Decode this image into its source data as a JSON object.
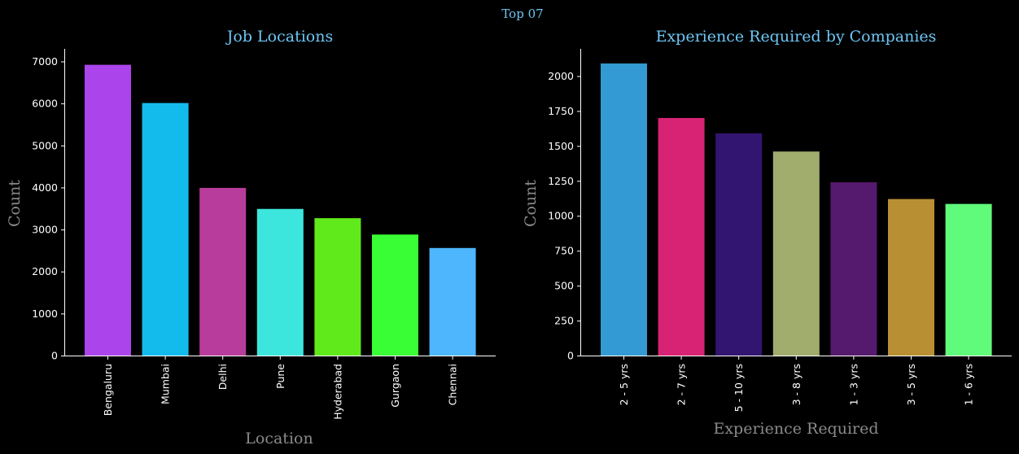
{
  "suptitle": "Top 07",
  "chart_data": [
    {
      "type": "bar",
      "title": "Job Locations",
      "xlabel": "Location",
      "ylabel": "Count",
      "categories": [
        "Bengaluru",
        "Mumbai",
        "Delhi",
        "Pune",
        "Hyderabad",
        "Gurgaon",
        "Chennai"
      ],
      "values": [
        6920,
        6010,
        3990,
        3490,
        3270,
        2880,
        2560
      ],
      "colors": [
        "#ac44ec",
        "#13bbed",
        "#b83c9c",
        "#3ce6dc",
        "#60ea1c",
        "#39fd35",
        "#4eb6fd"
      ],
      "ylim": [
        0,
        7300
      ],
      "yticks": [
        0,
        1000,
        2000,
        3000,
        4000,
        5000,
        6000,
        7000
      ],
      "grid": false,
      "legend": "none"
    },
    {
      "type": "bar",
      "title": "Experience Required by Companies",
      "xlabel": "Experience Required",
      "ylabel": "Count",
      "categories": [
        "2 - 5 yrs",
        "2 - 7 yrs",
        "5 - 10 yrs",
        "3 - 8 yrs",
        "1 - 3 yrs",
        "3 - 5 yrs",
        "1 - 6 yrs"
      ],
      "values": [
        2090,
        1700,
        1590,
        1460,
        1240,
        1120,
        1085
      ],
      "colors": [
        "#339ad3",
        "#d82374",
        "#321570",
        "#a0ad6d",
        "#55196d",
        "#b98f33",
        "#60fb7a"
      ],
      "ylim": [
        0,
        2195
      ],
      "yticks": [
        0,
        250,
        500,
        750,
        1000,
        1250,
        1500,
        1750,
        2000
      ],
      "grid": false,
      "legend": "none"
    }
  ]
}
